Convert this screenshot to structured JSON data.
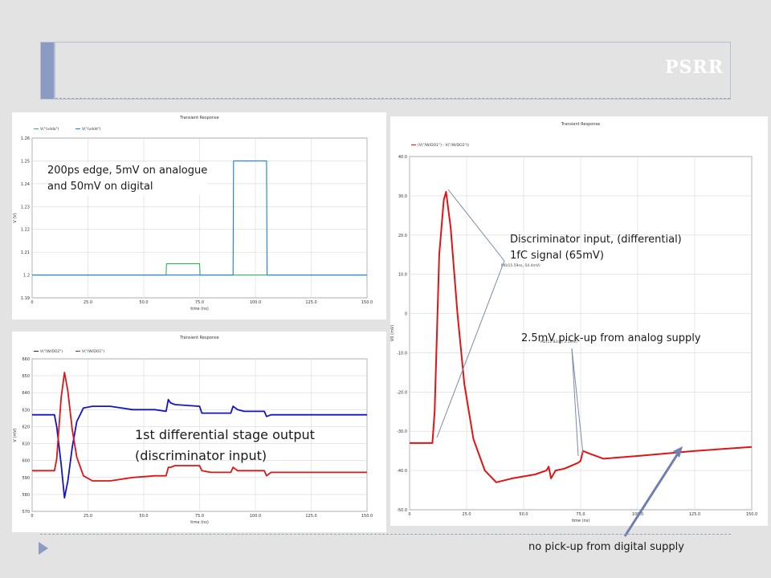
{
  "slide": {
    "title": "PSRR",
    "annotations": {
      "edge": [
        "200ps edge, 5mV on analogue",
        "and 50mV on digital"
      ],
      "stage1": [
        "1st differential stage output",
        "(discriminator input)"
      ],
      "discrim": [
        "Discriminator input, (differential)",
        "1fC signal (65mV)"
      ],
      "pickup_analog": "2.5mV pick-up from analog supply",
      "pickup_digital": "no pick-up from digital supply"
    }
  },
  "chart_data": [
    {
      "type": "line",
      "title": "Transient Response",
      "xlabel": "time (ns)",
      "ylabel": "V (V)",
      "xlim": [
        0,
        150
      ],
      "ylim": [
        1.19,
        1.26
      ],
      "xticks": [
        "0",
        "25.0",
        "50.0",
        "75.0",
        "100.0",
        "125.0",
        "150.0"
      ],
      "yticks": [
        "1.19",
        "1.2",
        "1.21",
        "1.22",
        "1.23",
        "1.24",
        "1.25",
        "1.26"
      ],
      "grid": true,
      "legend_position": "top-left",
      "series": [
        {
          "name": "V(\"/vdda\")",
          "color": "#2fb55a",
          "x": [
            0,
            60,
            60.2,
            75,
            75.2,
            150
          ],
          "y": [
            1.2,
            1.2,
            1.205,
            1.205,
            1.2,
            1.2
          ]
        },
        {
          "name": "V(\"/vddd\")",
          "color": "#1a7fd6",
          "x": [
            0,
            90,
            90.2,
            105,
            105.2,
            150
          ],
          "y": [
            1.2,
            1.2,
            1.25,
            1.25,
            1.2,
            1.2
          ]
        }
      ]
    },
    {
      "type": "line",
      "title": "Transient Response",
      "xlabel": "time (ns)",
      "ylabel": "V (mV)",
      "xlim": [
        0,
        150
      ],
      "ylim": [
        570,
        660
      ],
      "xticks": [
        "0",
        "25.0",
        "50.0",
        "75.0",
        "100.0",
        "125.0",
        "150.0"
      ],
      "yticks": [
        "570",
        "580",
        "590",
        "600",
        "610",
        "620",
        "630",
        "640",
        "650",
        "660"
      ],
      "grid": true,
      "legend_position": "top-left",
      "series": [
        {
          "name": "V(\"/W/DO2\")",
          "color": "#1414c8",
          "x": [
            0,
            10,
            11,
            13,
            14.5,
            16,
            18,
            20,
            23,
            27,
            35,
            45,
            55,
            60,
            61,
            62,
            64,
            75,
            76,
            80,
            89,
            90,
            92,
            95,
            104,
            105,
            107,
            150
          ],
          "y": [
            627,
            627,
            620,
            598,
            578,
            588,
            608,
            623,
            631,
            632,
            632,
            630,
            630,
            629,
            636,
            634,
            633,
            632,
            628,
            628,
            628,
            632,
            630,
            629,
            629,
            626,
            627,
            627
          ]
        },
        {
          "name": "V(\"/W/DO1\")",
          "color": "#e01414",
          "x": [
            0,
            10,
            11,
            13,
            14.5,
            16,
            18,
            20,
            23,
            27,
            35,
            45,
            55,
            60,
            61,
            62,
            64,
            75,
            76,
            80,
            89,
            90,
            92,
            95,
            104,
            105,
            107,
            150
          ],
          "y": [
            594,
            594,
            601,
            637,
            652,
            641,
            618,
            602,
            591,
            588,
            588,
            590,
            591,
            591,
            596,
            596,
            597,
            597,
            594,
            593,
            593,
            596,
            594,
            594,
            594,
            591,
            593,
            593
          ]
        }
      ]
    },
    {
      "type": "line",
      "title": "Transient Response",
      "xlabel": "time (ns)",
      "ylabel": "V0 (mV)",
      "xlim": [
        0,
        150
      ],
      "ylim": [
        -50,
        40
      ],
      "xticks": [
        "0",
        "25.0",
        "50.0",
        "75.0",
        "100.0",
        "125.0",
        "150.0"
      ],
      "yticks": [
        "-50.0",
        "-40.0",
        "-30.0",
        "-20.0",
        "-10.0",
        "0",
        "10.0",
        "20.0",
        "30.0",
        "40.0"
      ],
      "grid": true,
      "legend_position": "top-left",
      "series": [
        {
          "name": "(V(\"/W/DO1\") - V(\"/W/DO2\"))",
          "color": "#e01414",
          "x": [
            0,
            10,
            11,
            13,
            15,
            16,
            18,
            21,
            24,
            28,
            33,
            38,
            45,
            55,
            60,
            61,
            62,
            64,
            68,
            74,
            75,
            76,
            78,
            85,
            100,
            125,
            150
          ],
          "y": [
            -33,
            -33,
            -25,
            15,
            29,
            31,
            22,
            0,
            -18,
            -32,
            -40,
            -43,
            -42,
            -41,
            -40,
            -39,
            -42,
            -40,
            -39.5,
            -38,
            -37.5,
            -35,
            -35.5,
            -37,
            -36.3,
            -35,
            -34
          ]
        }
      ],
      "markers": [
        {
          "label": "M0(15.59ns, 54.4mV)"
        },
        {
          "label": "M2(11.82ns, 2.5mV)"
        }
      ]
    }
  ]
}
